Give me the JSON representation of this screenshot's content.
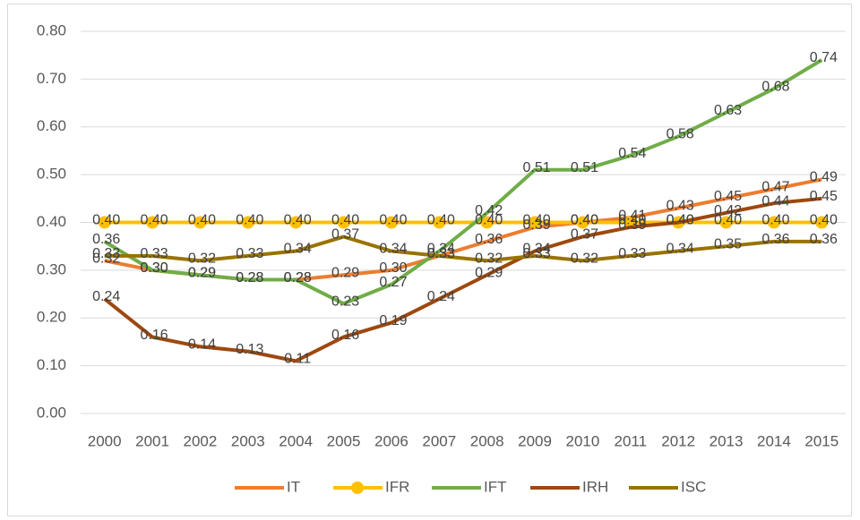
{
  "chart_data": {
    "type": "line",
    "categories": [
      "2000",
      "2001",
      "2002",
      "2003",
      "2004",
      "2005",
      "2006",
      "2007",
      "2008",
      "2009",
      "2010",
      "2011",
      "2012",
      "2013",
      "2014",
      "2015"
    ],
    "ylim": [
      0,
      0.8
    ],
    "yticks": [
      {
        "value": 0,
        "label": "0.00"
      },
      {
        "value": 0.1,
        "label": "0.10"
      },
      {
        "value": 0.2,
        "label": "0.20"
      },
      {
        "value": 0.3,
        "label": "0.30"
      },
      {
        "value": 0.4,
        "label": "0.40"
      },
      {
        "value": 0.5,
        "label": "0.50"
      },
      {
        "value": 0.6,
        "label": "0.60"
      },
      {
        "value": 0.7,
        "label": "0.70"
      },
      {
        "value": 0.8,
        "label": "0.80"
      }
    ],
    "grid": true,
    "legend": "bottom",
    "series": [
      {
        "name": "IT",
        "color": "#ed7d31",
        "values": [
          0.32,
          0.3,
          0.29,
          0.28,
          0.28,
          0.29,
          0.3,
          0.33,
          0.36,
          0.39,
          0.4,
          0.41,
          0.43,
          0.45,
          0.47,
          0.49
        ],
        "value_labels": [
          "0.32",
          "0.30",
          "0.29",
          "0.28",
          "0.28",
          "0.29",
          "0.30",
          "0.33",
          "0.36",
          "0.39",
          "0.40",
          "0.41",
          "0.43",
          "0.45",
          "0.47",
          "0.49"
        ]
      },
      {
        "name": "IFR",
        "color": "#ffc000",
        "marker": "circle",
        "values": [
          0.4,
          0.4,
          0.4,
          0.4,
          0.4,
          0.4,
          0.4,
          0.4,
          0.4,
          0.4,
          0.4,
          0.4,
          0.4,
          0.4,
          0.4,
          0.4
        ],
        "value_labels": [
          "0.40",
          "0.40",
          "0.40",
          "0.40",
          "0.40",
          "0.40",
          "0.40",
          "0.40",
          "0.40",
          "0.40",
          "0.40",
          "0.40",
          "0.40",
          "0.40",
          "0.40",
          "0.40"
        ]
      },
      {
        "name": "IFT",
        "color": "#70ad47",
        "values": [
          0.36,
          0.3,
          0.29,
          0.28,
          0.28,
          0.23,
          0.27,
          0.34,
          0.42,
          0.51,
          0.51,
          0.54,
          0.58,
          0.63,
          0.68,
          0.74
        ],
        "value_labels": [
          "0.36",
          "0.30",
          "0.29",
          "0.28",
          "0.28",
          "0.23",
          "0.27",
          "0.34",
          "0.42",
          "0.51",
          "0.51",
          "0.54",
          "0.58",
          "0.63",
          "0.68",
          "0.74"
        ]
      },
      {
        "name": "IRH",
        "color": "#9e480e",
        "values": [
          0.24,
          0.16,
          0.14,
          0.13,
          0.11,
          0.16,
          0.19,
          0.24,
          0.29,
          0.34,
          0.37,
          0.39,
          0.4,
          0.42,
          0.44,
          0.45
        ],
        "value_labels": [
          "0.24",
          "0.16",
          "0.14",
          "0.13",
          "0.11",
          "0.16",
          "0.19",
          "0.24",
          "0.29",
          "0.34",
          "0.37",
          "0.39",
          "0.40",
          "0.42",
          "0.44",
          "0.45"
        ]
      },
      {
        "name": "ISC",
        "color": "#997300",
        "values": [
          0.33,
          0.33,
          0.32,
          0.33,
          0.34,
          0.37,
          0.34,
          0.33,
          0.32,
          0.33,
          0.32,
          0.33,
          0.34,
          0.35,
          0.36,
          0.36
        ],
        "value_labels": [
          "0.33",
          "0.33",
          "0.32",
          "0.33",
          "0.34",
          "0.37",
          "0.34",
          "0.33",
          "0.32",
          "0.33",
          "0.32",
          "0.33",
          "0.34",
          "0.35",
          "0.36",
          "0.36"
        ]
      }
    ]
  }
}
